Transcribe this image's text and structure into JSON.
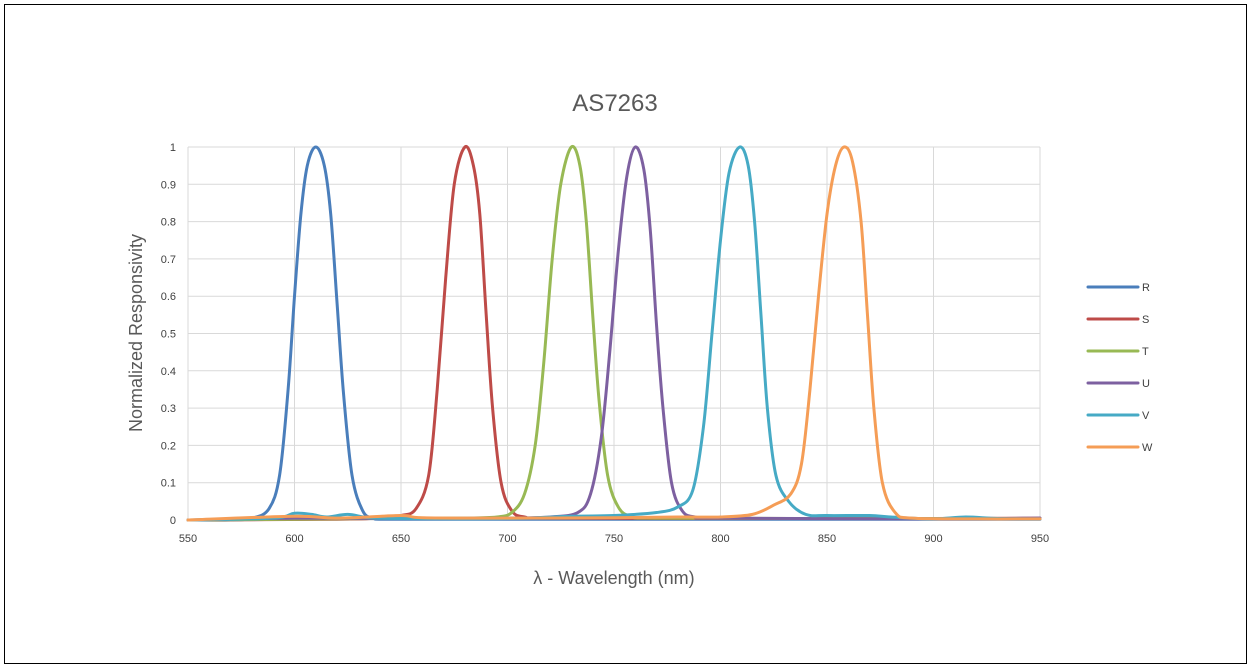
{
  "chart_data": {
    "type": "line",
    "title": "AS7263",
    "xlabel": "λ - Wavelength (nm)",
    "ylabel": "Normalized Responsivity",
    "xlim": [
      550,
      950
    ],
    "ylim": [
      0,
      1
    ],
    "xticks": [
      "550",
      "600",
      "650",
      "700",
      "750",
      "800",
      "850",
      "900",
      "950"
    ],
    "yticks": [
      "0",
      "0.1",
      "0.2",
      "0.3",
      "0.4",
      "0.5",
      "0.6",
      "0.7",
      "0.8",
      "0.9",
      "1"
    ],
    "grid": true,
    "legend_position": "right",
    "series": [
      {
        "name": "R",
        "color": "#4a7ebb",
        "points": [
          [
            550,
            0
          ],
          [
            570,
            0
          ],
          [
            580,
            0.005
          ],
          [
            588,
            0.03
          ],
          [
            593,
            0.12
          ],
          [
            597,
            0.35
          ],
          [
            600,
            0.6
          ],
          [
            603,
            0.82
          ],
          [
            606,
            0.95
          ],
          [
            610,
            1.0
          ],
          [
            614,
            0.95
          ],
          [
            617,
            0.82
          ],
          [
            620,
            0.58
          ],
          [
            623,
            0.34
          ],
          [
            627,
            0.12
          ],
          [
            632,
            0.025
          ],
          [
            637,
            0.005
          ],
          [
            645,
            0.002
          ],
          [
            700,
            0.002
          ],
          [
            800,
            0.002
          ],
          [
            900,
            0.002
          ],
          [
            950,
            0.002
          ]
        ]
      },
      {
        "name": "S",
        "color": "#be4b48",
        "points": [
          [
            550,
            0
          ],
          [
            620,
            0.002
          ],
          [
            640,
            0.005
          ],
          [
            650,
            0.012
          ],
          [
            657,
            0.03
          ],
          [
            663,
            0.12
          ],
          [
            667,
            0.35
          ],
          [
            671,
            0.65
          ],
          [
            675,
            0.9
          ],
          [
            680,
            1.0
          ],
          [
            684,
            0.95
          ],
          [
            687,
            0.82
          ],
          [
            690,
            0.55
          ],
          [
            693,
            0.3
          ],
          [
            697,
            0.1
          ],
          [
            702,
            0.025
          ],
          [
            708,
            0.008
          ],
          [
            720,
            0.005
          ],
          [
            800,
            0.004
          ],
          [
            900,
            0.004
          ],
          [
            950,
            0.005
          ]
        ]
      },
      {
        "name": "T",
        "color": "#98b954",
        "points": [
          [
            550,
            0
          ],
          [
            600,
            0.002
          ],
          [
            650,
            0.005
          ],
          [
            680,
            0.005
          ],
          [
            695,
            0.008
          ],
          [
            702,
            0.02
          ],
          [
            708,
            0.07
          ],
          [
            713,
            0.2
          ],
          [
            717,
            0.42
          ],
          [
            721,
            0.7
          ],
          [
            725,
            0.9
          ],
          [
            730,
            1.0
          ],
          [
            734,
            0.95
          ],
          [
            737,
            0.8
          ],
          [
            740,
            0.55
          ],
          [
            743,
            0.32
          ],
          [
            747,
            0.12
          ],
          [
            752,
            0.035
          ],
          [
            758,
            0.01
          ],
          [
            770,
            0.005
          ],
          [
            850,
            0.004
          ],
          [
            950,
            0.004
          ]
        ]
      },
      {
        "name": "U",
        "color": "#7d60a0",
        "points": [
          [
            550,
            0
          ],
          [
            600,
            0.005
          ],
          [
            650,
            0.004
          ],
          [
            700,
            0.005
          ],
          [
            720,
            0.008
          ],
          [
            733,
            0.02
          ],
          [
            739,
            0.07
          ],
          [
            744,
            0.22
          ],
          [
            748,
            0.45
          ],
          [
            752,
            0.72
          ],
          [
            756,
            0.92
          ],
          [
            760,
            1.0
          ],
          [
            764,
            0.94
          ],
          [
            767,
            0.78
          ],
          [
            770,
            0.52
          ],
          [
            773,
            0.3
          ],
          [
            777,
            0.1
          ],
          [
            782,
            0.025
          ],
          [
            788,
            0.008
          ],
          [
            800,
            0.005
          ],
          [
            900,
            0.003
          ],
          [
            950,
            0.005
          ]
        ]
      },
      {
        "name": "V",
        "color": "#46aac5",
        "points": [
          [
            550,
            0
          ],
          [
            590,
            0.005
          ],
          [
            600,
            0.018
          ],
          [
            608,
            0.015
          ],
          [
            615,
            0.008
          ],
          [
            625,
            0.015
          ],
          [
            635,
            0.006
          ],
          [
            650,
            0.004
          ],
          [
            700,
            0.004
          ],
          [
            730,
            0.01
          ],
          [
            750,
            0.012
          ],
          [
            770,
            0.02
          ],
          [
            780,
            0.035
          ],
          [
            787,
            0.08
          ],
          [
            792,
            0.25
          ],
          [
            796,
            0.5
          ],
          [
            800,
            0.75
          ],
          [
            804,
            0.93
          ],
          [
            809,
            1.0
          ],
          [
            813,
            0.95
          ],
          [
            816,
            0.8
          ],
          [
            819,
            0.55
          ],
          [
            822,
            0.3
          ],
          [
            826,
            0.12
          ],
          [
            832,
            0.05
          ],
          [
            840,
            0.015
          ],
          [
            850,
            0.012
          ],
          [
            870,
            0.012
          ],
          [
            880,
            0.008
          ],
          [
            900,
            0.003
          ],
          [
            915,
            0.008
          ],
          [
            930,
            0.004
          ],
          [
            950,
            0.003
          ]
        ]
      },
      {
        "name": "W",
        "color": "#f59d56",
        "points": [
          [
            550,
            0
          ],
          [
            600,
            0.01
          ],
          [
            620,
            0.005
          ],
          [
            650,
            0.012
          ],
          [
            660,
            0.006
          ],
          [
            700,
            0.005
          ],
          [
            750,
            0.006
          ],
          [
            780,
            0.008
          ],
          [
            800,
            0.008
          ],
          [
            815,
            0.015
          ],
          [
            825,
            0.04
          ],
          [
            833,
            0.07
          ],
          [
            838,
            0.15
          ],
          [
            842,
            0.35
          ],
          [
            846,
            0.6
          ],
          [
            850,
            0.82
          ],
          [
            854,
            0.95
          ],
          [
            858,
            1.0
          ],
          [
            862,
            0.96
          ],
          [
            866,
            0.8
          ],
          [
            869,
            0.55
          ],
          [
            872,
            0.3
          ],
          [
            876,
            0.1
          ],
          [
            882,
            0.02
          ],
          [
            890,
            0.005
          ],
          [
            920,
            0.003
          ],
          [
            950,
            0.003
          ]
        ]
      }
    ]
  }
}
